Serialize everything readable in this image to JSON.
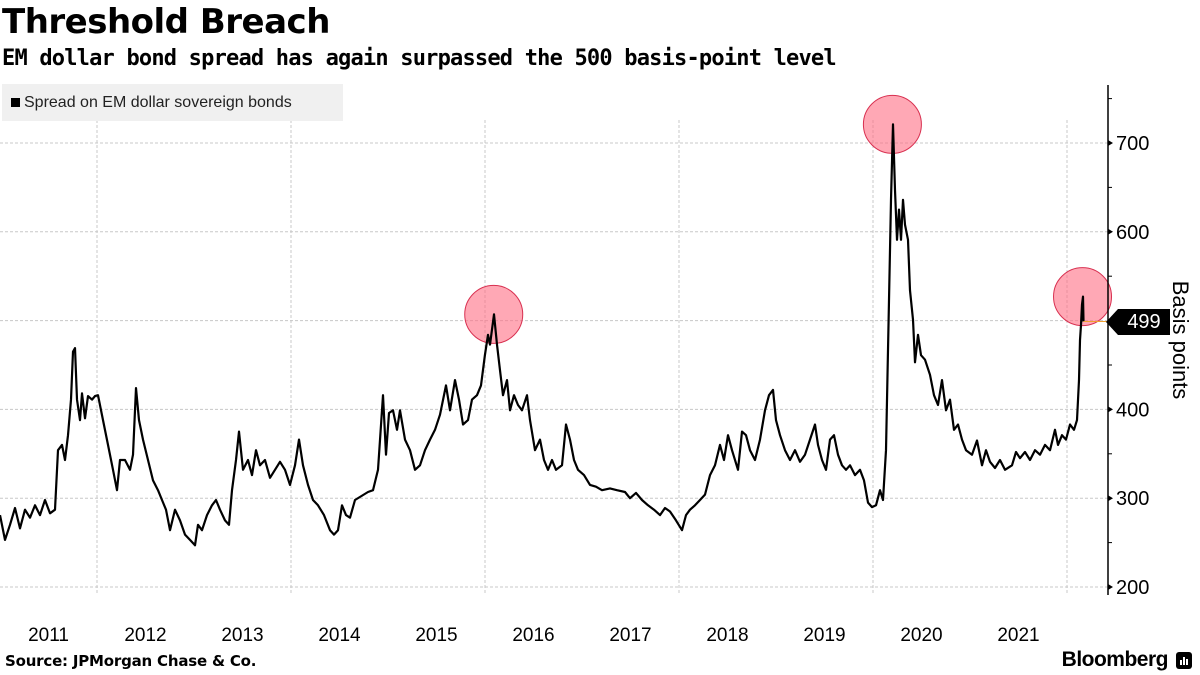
{
  "header": {
    "title": "Threshold Breach",
    "subtitle": "EM dollar bond spread has again surpassed the 500 basis-point level"
  },
  "footer": {
    "source": "Source: JPMorgan Chase & Co.",
    "brand": "Bloomberg",
    "brand_icon": "bloomberg-chart-icon"
  },
  "chart_data": {
    "type": "line",
    "title": "Threshold Breach",
    "subtitle": "EM dollar bond spread has again surpassed the 500 basis-point level",
    "xlabel": "",
    "ylabel": "Basis points",
    "y_axis_position": "right",
    "xlim": [
      2011.0,
      2022.3
    ],
    "ylim": [
      190,
      765
    ],
    "yticks": [
      200,
      300,
      400,
      500,
      600,
      700
    ],
    "ytick_labels": [
      "200",
      "300",
      "400",
      "",
      "600",
      "700"
    ],
    "xtick_labels": [
      "2011",
      "2012",
      "2013",
      "2014",
      "2015",
      "2016",
      "2017",
      "2018",
      "2019",
      "2020",
      "2021"
    ],
    "xtick_years": [
      2011,
      2012,
      2013,
      2014,
      2015,
      2016,
      2017,
      2018,
      2019,
      2020,
      2021
    ],
    "x_gridlines": [
      2012,
      2014,
      2016,
      2018,
      2020,
      2022
    ],
    "grid": true,
    "legend": {
      "position": "top-left",
      "entries": [
        "Spread on EM dollar sovereign bonds"
      ]
    },
    "current_value": {
      "label": "499",
      "value": 499
    },
    "highlight_color": "#ff6e84",
    "highlights": [
      {
        "x": 2016.09,
        "y": 507
      },
      {
        "x": 2020.2,
        "y": 721
      },
      {
        "x": 2022.16,
        "y": 527
      }
    ],
    "series": [
      {
        "name": "Spread on EM dollar sovereign bonds",
        "color": "#000000",
        "points": [
          [
            2011.0,
            281
          ],
          [
            2011.052,
            253
          ],
          [
            2011.103,
            270
          ],
          [
            2011.155,
            289
          ],
          [
            2011.206,
            266
          ],
          [
            2011.258,
            287
          ],
          [
            2011.309,
            278
          ],
          [
            2011.361,
            292
          ],
          [
            2011.412,
            281
          ],
          [
            2011.464,
            298
          ],
          [
            2011.515,
            283
          ],
          [
            2011.567,
            287
          ],
          [
            2011.598,
            354
          ],
          [
            2011.639,
            360
          ],
          [
            2011.67,
            343
          ],
          [
            2011.701,
            371
          ],
          [
            2011.732,
            411
          ],
          [
            2011.753,
            465
          ],
          [
            2011.773,
            469
          ],
          [
            2011.794,
            411
          ],
          [
            2011.825,
            388
          ],
          [
            2011.845,
            418
          ],
          [
            2011.876,
            390
          ],
          [
            2011.907,
            415
          ],
          [
            2011.948,
            411
          ],
          [
            2011.979,
            415
          ],
          [
            2012.01,
            416
          ],
          [
            2012.062,
            388
          ],
          [
            2012.113,
            360
          ],
          [
            2012.165,
            332
          ],
          [
            2012.206,
            309
          ],
          [
            2012.237,
            343
          ],
          [
            2012.289,
            343
          ],
          [
            2012.34,
            332
          ],
          [
            2012.371,
            349
          ],
          [
            2012.402,
            424
          ],
          [
            2012.433,
            388
          ],
          [
            2012.474,
            366
          ],
          [
            2012.526,
            343
          ],
          [
            2012.577,
            320
          ],
          [
            2012.629,
            309
          ],
          [
            2012.67,
            298
          ],
          [
            2012.711,
            287
          ],
          [
            2012.753,
            264
          ],
          [
            2012.804,
            287
          ],
          [
            2012.856,
            275
          ],
          [
            2012.907,
            259
          ],
          [
            2012.959,
            253
          ],
          [
            2013.01,
            247
          ],
          [
            2013.041,
            270
          ],
          [
            2013.082,
            264
          ],
          [
            2013.134,
            281
          ],
          [
            2013.186,
            292
          ],
          [
            2013.227,
            298
          ],
          [
            2013.268,
            287
          ],
          [
            2013.32,
            275
          ],
          [
            2013.361,
            270
          ],
          [
            2013.392,
            309
          ],
          [
            2013.433,
            343
          ],
          [
            2013.464,
            375
          ],
          [
            2013.505,
            332
          ],
          [
            2013.557,
            343
          ],
          [
            2013.598,
            326
          ],
          [
            2013.639,
            354
          ],
          [
            2013.68,
            337
          ],
          [
            2013.732,
            343
          ],
          [
            2013.784,
            323
          ],
          [
            2013.835,
            332
          ],
          [
            2013.887,
            341
          ],
          [
            2013.938,
            332
          ],
          [
            2013.99,
            315
          ],
          [
            2014.041,
            337
          ],
          [
            2014.082,
            366
          ],
          [
            2014.124,
            337
          ],
          [
            2014.175,
            315
          ],
          [
            2014.227,
            298
          ],
          [
            2014.278,
            292
          ],
          [
            2014.34,
            281
          ],
          [
            2014.402,
            264
          ],
          [
            2014.443,
            259
          ],
          [
            2014.485,
            264
          ],
          [
            2014.526,
            292
          ],
          [
            2014.567,
            281
          ],
          [
            2014.608,
            278
          ],
          [
            2014.66,
            298
          ],
          [
            2014.794,
            307
          ],
          [
            2014.845,
            309
          ],
          [
            2014.897,
            332
          ],
          [
            2014.948,
            416
          ],
          [
            2014.979,
            349
          ],
          [
            2015.01,
            396
          ],
          [
            2015.052,
            399
          ],
          [
            2015.093,
            377
          ],
          [
            2015.124,
            399
          ],
          [
            2015.175,
            366
          ],
          [
            2015.227,
            354
          ],
          [
            2015.278,
            332
          ],
          [
            2015.33,
            337
          ],
          [
            2015.381,
            354
          ],
          [
            2015.433,
            366
          ],
          [
            2015.485,
            377
          ],
          [
            2015.536,
            394
          ],
          [
            2015.598,
            427
          ],
          [
            2015.639,
            399
          ],
          [
            2015.691,
            433
          ],
          [
            2015.732,
            411
          ],
          [
            2015.773,
            383
          ],
          [
            2015.825,
            388
          ],
          [
            2015.866,
            411
          ],
          [
            2015.918,
            416
          ],
          [
            2015.959,
            427
          ],
          [
            2015.999,
            461
          ],
          [
            2016.031,
            484
          ],
          [
            2016.052,
            473
          ],
          [
            2016.093,
            507
          ],
          [
            2016.124,
            473
          ],
          [
            2016.155,
            444
          ],
          [
            2016.186,
            416
          ],
          [
            2016.227,
            433
          ],
          [
            2016.258,
            399
          ],
          [
            2016.299,
            416
          ],
          [
            2016.34,
            405
          ],
          [
            2016.381,
            399
          ],
          [
            2016.433,
            416
          ],
          [
            2016.464,
            388
          ],
          [
            2016.515,
            354
          ],
          [
            2016.567,
            366
          ],
          [
            2016.608,
            343
          ],
          [
            2016.649,
            332
          ],
          [
            2016.691,
            343
          ],
          [
            2016.732,
            332
          ],
          [
            2016.794,
            337
          ],
          [
            2016.835,
            383
          ],
          [
            2016.876,
            366
          ],
          [
            2016.918,
            343
          ],
          [
            2016.959,
            332
          ],
          [
            2017.021,
            326
          ],
          [
            2017.082,
            315
          ],
          [
            2017.144,
            313
          ],
          [
            2017.206,
            309
          ],
          [
            2017.289,
            311
          ],
          [
            2017.361,
            309
          ],
          [
            2017.443,
            307
          ],
          [
            2017.495,
            300
          ],
          [
            2017.557,
            306
          ],
          [
            2017.619,
            298
          ],
          [
            2017.68,
            292
          ],
          [
            2017.742,
            287
          ],
          [
            2017.804,
            281
          ],
          [
            2017.856,
            289
          ],
          [
            2017.907,
            285
          ],
          [
            2017.969,
            275
          ],
          [
            2018.031,
            264
          ],
          [
            2018.072,
            281
          ],
          [
            2018.113,
            287
          ],
          [
            2018.165,
            292
          ],
          [
            2018.216,
            298
          ],
          [
            2018.268,
            304
          ],
          [
            2018.32,
            326
          ],
          [
            2018.371,
            337
          ],
          [
            2018.423,
            360
          ],
          [
            2018.464,
            343
          ],
          [
            2018.505,
            371
          ],
          [
            2018.546,
            354
          ],
          [
            2018.608,
            332
          ],
          [
            2018.649,
            375
          ],
          [
            2018.691,
            371
          ],
          [
            2018.732,
            354
          ],
          [
            2018.784,
            343
          ],
          [
            2018.835,
            366
          ],
          [
            2018.887,
            399
          ],
          [
            2018.928,
            416
          ],
          [
            2018.969,
            422
          ],
          [
            2019.0,
            388
          ],
          [
            2019.041,
            371
          ],
          [
            2019.093,
            354
          ],
          [
            2019.144,
            343
          ],
          [
            2019.196,
            354
          ],
          [
            2019.247,
            341
          ],
          [
            2019.299,
            349
          ],
          [
            2019.351,
            366
          ],
          [
            2019.402,
            383
          ],
          [
            2019.433,
            360
          ],
          [
            2019.474,
            343
          ],
          [
            2019.515,
            332
          ],
          [
            2019.557,
            366
          ],
          [
            2019.598,
            371
          ],
          [
            2019.639,
            349
          ],
          [
            2019.68,
            337
          ],
          [
            2019.722,
            332
          ],
          [
            2019.763,
            337
          ],
          [
            2019.814,
            326
          ],
          [
            2019.866,
            332
          ],
          [
            2019.907,
            320
          ],
          [
            2019.948,
            295
          ],
          [
            2019.99,
            290
          ],
          [
            2020.031,
            292
          ],
          [
            2020.072,
            309
          ],
          [
            2020.103,
            298
          ],
          [
            2020.134,
            354
          ],
          [
            2020.165,
            523
          ],
          [
            2020.186,
            636
          ],
          [
            2020.206,
            721
          ],
          [
            2020.227,
            647
          ],
          [
            2020.247,
            591
          ],
          [
            2020.268,
            625
          ],
          [
            2020.289,
            591
          ],
          [
            2020.309,
            636
          ],
          [
            2020.33,
            608
          ],
          [
            2020.361,
            591
          ],
          [
            2020.381,
            534
          ],
          [
            2020.412,
            501
          ],
          [
            2020.433,
            453
          ],
          [
            2020.464,
            484
          ],
          [
            2020.495,
            461
          ],
          [
            2020.536,
            456
          ],
          [
            2020.588,
            439
          ],
          [
            2020.629,
            416
          ],
          [
            2020.67,
            405
          ],
          [
            2020.711,
            433
          ],
          [
            2020.753,
            399
          ],
          [
            2020.794,
            411
          ],
          [
            2020.835,
            377
          ],
          [
            2020.876,
            383
          ],
          [
            2020.918,
            366
          ],
          [
            2020.959,
            354
          ],
          [
            2021.021,
            349
          ],
          [
            2021.072,
            365
          ],
          [
            2021.124,
            337
          ],
          [
            2021.165,
            354
          ],
          [
            2021.206,
            341
          ],
          [
            2021.258,
            334
          ],
          [
            2021.309,
            343
          ],
          [
            2021.361,
            332
          ],
          [
            2021.433,
            337
          ],
          [
            2021.474,
            352
          ],
          [
            2021.515,
            345
          ],
          [
            2021.567,
            352
          ],
          [
            2021.619,
            343
          ],
          [
            2021.67,
            354
          ],
          [
            2021.722,
            349
          ],
          [
            2021.773,
            360
          ],
          [
            2021.825,
            354
          ],
          [
            2021.876,
            377
          ],
          [
            2021.907,
            360
          ],
          [
            2021.948,
            371
          ],
          [
            2021.99,
            366
          ],
          [
            2022.031,
            383
          ],
          [
            2022.072,
            377
          ],
          [
            2022.103,
            388
          ],
          [
            2022.124,
            433
          ],
          [
            2022.134,
            478
          ],
          [
            2022.144,
            495
          ],
          [
            2022.155,
            518
          ],
          [
            2022.165,
            527
          ],
          [
            2022.17,
            499
          ]
        ]
      }
    ]
  }
}
